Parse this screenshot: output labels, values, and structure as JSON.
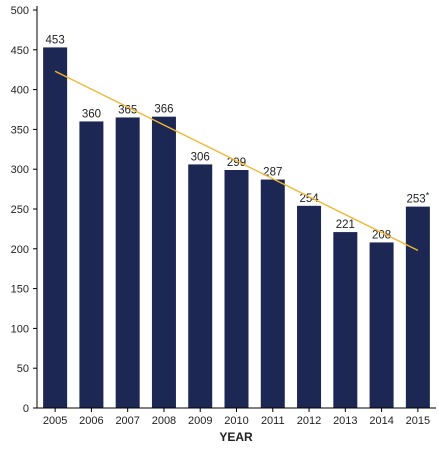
{
  "chart_data": {
    "type": "bar",
    "categories": [
      "2005",
      "2006",
      "2007",
      "2008",
      "2009",
      "2010",
      "2011",
      "2012",
      "2013",
      "2014",
      "2015"
    ],
    "values": [
      453,
      360,
      365,
      366,
      306,
      299,
      287,
      254,
      221,
      208,
      253
    ],
    "data_labels": [
      "453",
      "360",
      "365",
      "366",
      "306",
      "299",
      "287",
      "254",
      "221",
      "208",
      "253*"
    ],
    "xlabel": "YEAR",
    "ylabel": "",
    "ylim": [
      0,
      500
    ],
    "yticks": [
      0,
      50,
      100,
      150,
      200,
      250,
      300,
      350,
      400,
      450,
      500
    ],
    "grid": false,
    "trendline": {
      "start": [
        2005,
        423
      ],
      "end": [
        2015,
        198
      ]
    },
    "colors": {
      "bar": "#1c2753",
      "trend": "#f2b632"
    }
  }
}
